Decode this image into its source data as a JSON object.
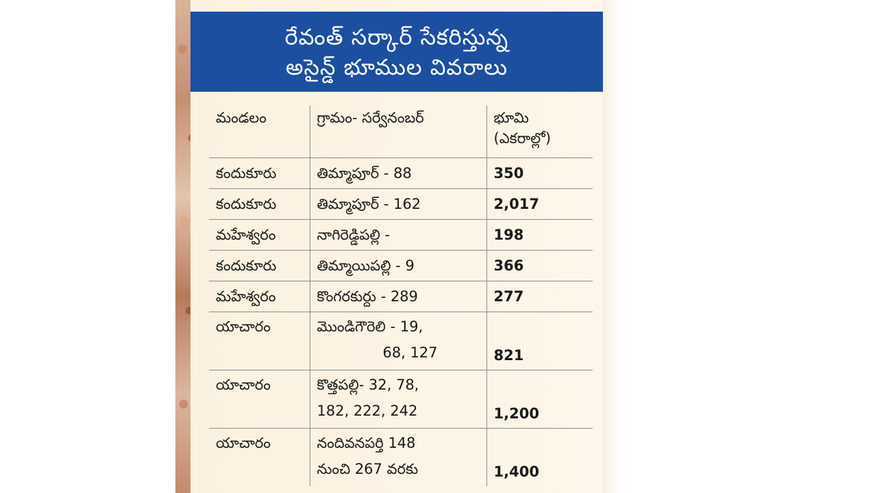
{
  "title": {
    "line1": "రేవంత్ సర్కార్ సేకరిస్తున్న",
    "line2": "అసైన్డ్ భూముల వివరాలు"
  },
  "table": {
    "headers": {
      "mandal": "మండలం",
      "village": "గ్రామం- సర్వేనంబర్",
      "land": "భూమి",
      "land_unit": "(ఎకరాల్లో)"
    },
    "rows": [
      {
        "mandal": "కందుకూరు",
        "village": "తిమ్మాపూర్ - 88",
        "land": "350"
      },
      {
        "mandal": "కందుకూరు",
        "village": "తిమ్మాపూర్ - 162",
        "land": "2,017"
      },
      {
        "mandal": "మహేశ్వరం",
        "village": "నాగిరెడ్డిపల్లి -",
        "land": "198"
      },
      {
        "mandal": "కందుకూరు",
        "village": "తిమ్మాయిపల్లి - 9",
        "land": "366"
      },
      {
        "mandal": "మహేశ్వరం",
        "village": "కొంగరకుర్దు - 289",
        "land": "277"
      },
      {
        "mandal": "యాచారం",
        "village": "మొండిగౌరెలి - 19,",
        "village2": "68, 127",
        "land": "821"
      },
      {
        "mandal": "యాచారం",
        "village": "కొత్తపల్లి- 32, 78,",
        "village2": "182, 222, 242",
        "land": "1,200"
      },
      {
        "mandal": "యాచారం",
        "village": "నందివనపర్తి 148",
        "village2": "నుంచి 267 వరకు",
        "land": "1,400"
      }
    ]
  }
}
